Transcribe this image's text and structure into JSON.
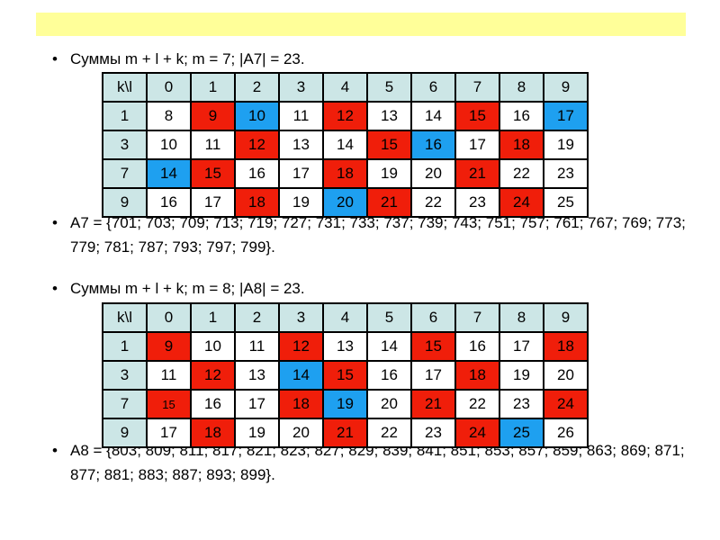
{
  "slide": {
    "sum7_heading": "Суммы m + l + k;   m = 7;    |A7|  = 23.",
    "table7": {
      "rows": [
        [
          {
            "t": "k\\l",
            "c": "hdr"
          },
          {
            "t": "0",
            "c": "hdr"
          },
          {
            "t": "1",
            "c": "hdr"
          },
          {
            "t": "2",
            "c": "hdr"
          },
          {
            "t": "3",
            "c": "hdr"
          },
          {
            "t": "4",
            "c": "hdr"
          },
          {
            "t": "5",
            "c": "hdr"
          },
          {
            "t": "6",
            "c": "hdr"
          },
          {
            "t": "7",
            "c": "hdr"
          },
          {
            "t": "8",
            "c": "hdr"
          },
          {
            "t": "9",
            "c": "hdr"
          }
        ],
        [
          {
            "t": "1",
            "c": "hdr"
          },
          {
            "t": "8",
            "c": ""
          },
          {
            "t": "9",
            "c": "red"
          },
          {
            "t": "10",
            "c": "blue"
          },
          {
            "t": "11",
            "c": ""
          },
          {
            "t": "12",
            "c": "red"
          },
          {
            "t": "13",
            "c": ""
          },
          {
            "t": "14",
            "c": ""
          },
          {
            "t": "15",
            "c": "red"
          },
          {
            "t": "16",
            "c": ""
          },
          {
            "t": "17",
            "c": "blue"
          }
        ],
        [
          {
            "t": "3",
            "c": "hdr"
          },
          {
            "t": "10",
            "c": ""
          },
          {
            "t": "11",
            "c": ""
          },
          {
            "t": "12",
            "c": "red"
          },
          {
            "t": "13",
            "c": ""
          },
          {
            "t": "14",
            "c": ""
          },
          {
            "t": "15",
            "c": "red"
          },
          {
            "t": "16",
            "c": "blue"
          },
          {
            "t": "17",
            "c": ""
          },
          {
            "t": "18",
            "c": "red"
          },
          {
            "t": "19",
            "c": ""
          }
        ],
        [
          {
            "t": "7",
            "c": "hdr"
          },
          {
            "t": "14",
            "c": "blue"
          },
          {
            "t": "15",
            "c": "red"
          },
          {
            "t": "16",
            "c": ""
          },
          {
            "t": "17",
            "c": ""
          },
          {
            "t": "18",
            "c": "red"
          },
          {
            "t": "19",
            "c": ""
          },
          {
            "t": "20",
            "c": ""
          },
          {
            "t": "21",
            "c": "red"
          },
          {
            "t": "22",
            "c": ""
          },
          {
            "t": "23",
            "c": ""
          }
        ],
        [
          {
            "t": "9",
            "c": "hdr"
          },
          {
            "t": "16",
            "c": ""
          },
          {
            "t": "17",
            "c": ""
          },
          {
            "t": "18",
            "c": "red"
          },
          {
            "t": "19",
            "c": ""
          },
          {
            "t": "20",
            "c": "blue"
          },
          {
            "t": "21",
            "c": "red"
          },
          {
            "t": "22",
            "c": ""
          },
          {
            "t": "23",
            "c": ""
          },
          {
            "t": "24",
            "c": "red"
          },
          {
            "t": "25",
            "c": ""
          }
        ]
      ]
    },
    "set7_text": "A7 = {701; 703; 709; 713; 719; 727; 731; 733; 737; 739; 743; 751; 757; 761; 767; 769; 773; 779; 781; 787; 793; 797; 799}.",
    "sum8_heading": "Суммы m + l + k;   m = 8;    |A8|  = 23.",
    "table8": {
      "rows": [
        [
          {
            "t": "k\\l",
            "c": "hdr"
          },
          {
            "t": "0",
            "c": "hdr"
          },
          {
            "t": "1",
            "c": "hdr"
          },
          {
            "t": "2",
            "c": "hdr"
          },
          {
            "t": "3",
            "c": "hdr"
          },
          {
            "t": "4",
            "c": "hdr"
          },
          {
            "t": "5",
            "c": "hdr"
          },
          {
            "t": "6",
            "c": "hdr"
          },
          {
            "t": "7",
            "c": "hdr"
          },
          {
            "t": "8",
            "c": "hdr"
          },
          {
            "t": "9",
            "c": "hdr"
          }
        ],
        [
          {
            "t": "1",
            "c": "hdr"
          },
          {
            "t": "9",
            "c": "red"
          },
          {
            "t": "10",
            "c": ""
          },
          {
            "t": "11",
            "c": ""
          },
          {
            "t": "12",
            "c": "red"
          },
          {
            "t": "13",
            "c": ""
          },
          {
            "t": "14",
            "c": ""
          },
          {
            "t": "15",
            "c": "red"
          },
          {
            "t": "16",
            "c": ""
          },
          {
            "t": "17",
            "c": ""
          },
          {
            "t": "18",
            "c": "red"
          }
        ],
        [
          {
            "t": "3",
            "c": "hdr"
          },
          {
            "t": "11",
            "c": ""
          },
          {
            "t": "12",
            "c": "red"
          },
          {
            "t": "13",
            "c": ""
          },
          {
            "t": "14",
            "c": "blue"
          },
          {
            "t": "15",
            "c": "red"
          },
          {
            "t": "16",
            "c": ""
          },
          {
            "t": "17",
            "c": ""
          },
          {
            "t": "18",
            "c": "red"
          },
          {
            "t": "19",
            "c": ""
          },
          {
            "t": "20",
            "c": ""
          }
        ],
        [
          {
            "t": "7",
            "c": "hdr"
          },
          {
            "t": "15",
            "c": "red small"
          },
          {
            "t": "16",
            "c": ""
          },
          {
            "t": "17",
            "c": ""
          },
          {
            "t": "18",
            "c": "red"
          },
          {
            "t": "19",
            "c": "blue"
          },
          {
            "t": "20",
            "c": ""
          },
          {
            "t": "21",
            "c": "red"
          },
          {
            "t": "22",
            "c": ""
          },
          {
            "t": "23",
            "c": ""
          },
          {
            "t": "24",
            "c": "red"
          }
        ],
        [
          {
            "t": "9",
            "c": "hdr"
          },
          {
            "t": "17",
            "c": ""
          },
          {
            "t": "18",
            "c": "red"
          },
          {
            "t": "19",
            "c": ""
          },
          {
            "t": "20",
            "c": ""
          },
          {
            "t": "21",
            "c": "red"
          },
          {
            "t": "22",
            "c": ""
          },
          {
            "t": "23",
            "c": ""
          },
          {
            "t": "24",
            "c": "red"
          },
          {
            "t": "25",
            "c": "blue"
          },
          {
            "t": "26",
            "c": ""
          }
        ]
      ]
    },
    "set8_text": "A8 = {803; 809; 811; 817; 821; 823; 827; 829; 839; 841; 851; 853; 857; 859; 863; 869; 871; 877; 881; 883; 887; 893; 899}.",
    "bullet": "•"
  }
}
